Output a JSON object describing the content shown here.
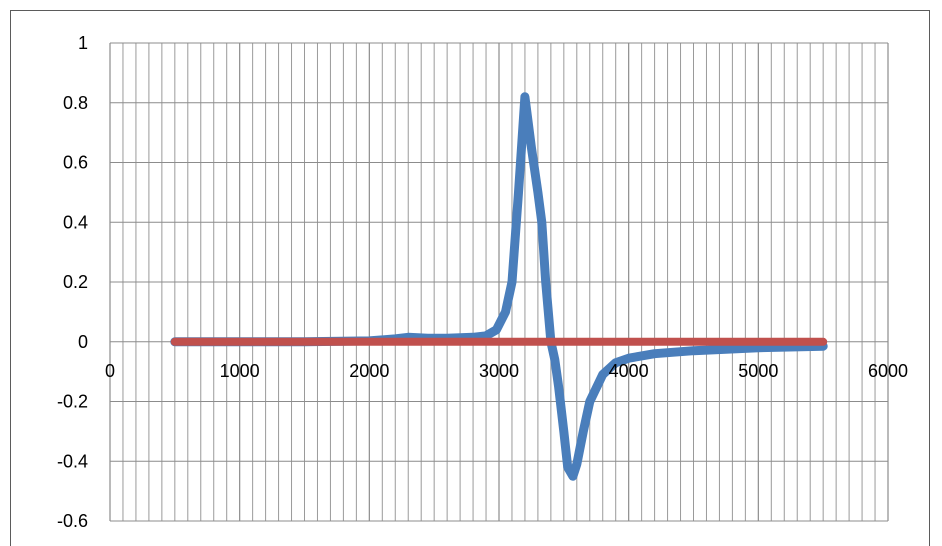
{
  "chart_data": {
    "type": "line",
    "title": "",
    "xlabel": "",
    "ylabel": "",
    "xlim": [
      0,
      6000
    ],
    "ylim": [
      -0.6,
      1.0
    ],
    "x_major_ticks": [
      0,
      1000,
      2000,
      3000,
      4000,
      5000,
      6000
    ],
    "x_minor_step": 100,
    "y_major_ticks": [
      -0.6,
      -0.4,
      -0.2,
      0,
      0.2,
      0.4,
      0.6,
      0.8,
      1
    ],
    "y_tick_labels": [
      "-0.6",
      "-0.4",
      "-0.2",
      "0",
      "0.2",
      "0.4",
      "0.6",
      "0.8",
      "1"
    ],
    "x_tick_labels": [
      "0",
      "1000",
      "2000",
      "3000",
      "4000",
      "5000",
      "6000"
    ],
    "grid": true,
    "legend": "none",
    "series": [
      {
        "color": "#4a7ebb",
        "points": [
          [
            500,
            0.0
          ],
          [
            1000,
            0.0
          ],
          [
            1500,
            0.0
          ],
          [
            2000,
            0.003
          ],
          [
            2200,
            0.01
          ],
          [
            2300,
            0.015
          ],
          [
            2450,
            0.012
          ],
          [
            2600,
            0.012
          ],
          [
            2800,
            0.015
          ],
          [
            2900,
            0.02
          ],
          [
            2980,
            0.04
          ],
          [
            3050,
            0.1
          ],
          [
            3100,
            0.2
          ],
          [
            3150,
            0.5
          ],
          [
            3200,
            0.82
          ],
          [
            3250,
            0.65
          ],
          [
            3300,
            0.5
          ],
          [
            3330,
            0.4
          ],
          [
            3360,
            0.2
          ],
          [
            3400,
            0.0
          ],
          [
            3430,
            -0.06
          ],
          [
            3460,
            -0.15
          ],
          [
            3500,
            -0.3
          ],
          [
            3530,
            -0.42
          ],
          [
            3570,
            -0.45
          ],
          [
            3600,
            -0.41
          ],
          [
            3650,
            -0.3
          ],
          [
            3700,
            -0.2
          ],
          [
            3800,
            -0.11
          ],
          [
            3900,
            -0.07
          ],
          [
            4000,
            -0.055
          ],
          [
            4200,
            -0.04
          ],
          [
            4500,
            -0.03
          ],
          [
            5000,
            -0.02
          ],
          [
            5500,
            -0.015
          ]
        ]
      },
      {
        "color": "#c0504d",
        "points": [
          [
            500,
            0.0
          ],
          [
            5500,
            0.0
          ]
        ]
      }
    ]
  }
}
